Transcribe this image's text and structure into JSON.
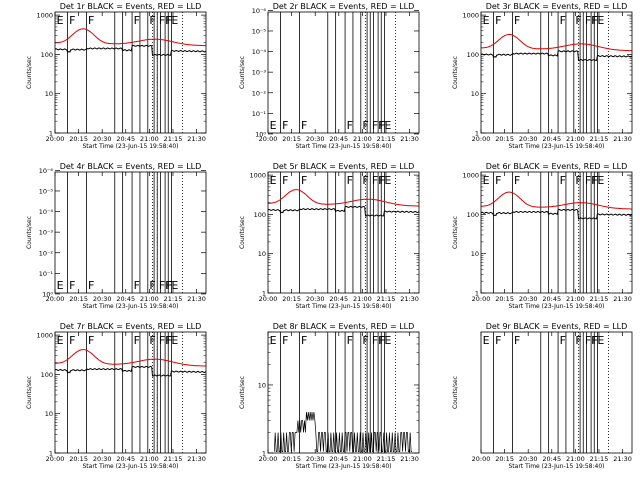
{
  "x_ticks": [
    "20:00",
    "20:15",
    "20:30",
    "20:45",
    "21:00",
    "21:15",
    "21:30"
  ],
  "x_tick_values": [
    0,
    15,
    30,
    45,
    60,
    75,
    90
  ],
  "xlim": [
    0,
    96
  ],
  "xlabel": "Start Time (23-Jun-15 19:58:40)",
  "ylabel": "Counts/sec",
  "vlines": [
    8,
    20,
    38,
    43,
    49,
    54,
    59,
    63,
    65,
    67,
    70,
    72,
    74
  ],
  "dotted_vlines": [
    62,
    81
  ],
  "flags": [
    {
      "x": 1,
      "label": "E"
    },
    {
      "x": 9,
      "label": "F"
    },
    {
      "x": 21,
      "label": "F"
    },
    {
      "x": 50,
      "label": "F"
    },
    {
      "x": 60,
      "label": "F"
    },
    {
      "x": 66,
      "label": "F"
    },
    {
      "x": 70,
      "label": "F"
    },
    {
      "x": 71,
      "label": "F"
    },
    {
      "x": 74,
      "label": "E"
    }
  ],
  "ticks_dec": [
    "1",
    "10",
    "100",
    "1000"
  ],
  "ticks_exp": [
    "10⁰",
    "10⁻¹",
    "10⁻²",
    "10⁻³",
    "10⁻⁴",
    "10⁻⁵",
    "10⁻⁶"
  ],
  "ticks_det8": [
    "1",
    "10"
  ],
  "series_colors": {
    "events": "#000000",
    "lld": "#e00000"
  },
  "chart_data": [
    {
      "type": "line",
      "title": "Det 1r BLACK = Events, RED = LLD",
      "yscale": "log",
      "ylim": [
        1,
        1200
      ],
      "yticks": "dec",
      "series": [
        {
          "name": "Events",
          "kind": "events"
        },
        {
          "name": "LLD",
          "kind": "lld"
        }
      ],
      "events_base": 135,
      "events_high": 165,
      "lld_base": 195,
      "lld_peak1": 460,
      "lld_peak2": 270
    }
  ],
  "panels": [
    {
      "title": "Det 1r BLACK = Events, RED = LLD",
      "yticks": "dec",
      "ylim": [
        1,
        1200
      ],
      "mode": "full",
      "ev_base": 135,
      "ev_high": 165,
      "lld_base": 195,
      "lld_p1": 460,
      "lld_p2": 270
    },
    {
      "title": "Det 2r BLACK = Events, RED = LLD",
      "yticks": "exp",
      "ylim": [
        0.9,
        1.2e-06
      ],
      "mode": "empty"
    },
    {
      "title": "Det 3r BLACK = Events, RED = LLD",
      "yticks": "dec",
      "ylim": [
        1,
        1200
      ],
      "mode": "full",
      "ev_base": 100,
      "ev_high": 120,
      "lld_base": 145,
      "lld_p1": 330,
      "lld_p2": 205
    },
    {
      "title": "Det 4r BLACK = Events, RED = LLD",
      "yticks": "exp",
      "ylim": [
        0.9,
        1.2e-06
      ],
      "mode": "empty"
    },
    {
      "title": "Det 5r BLACK = Events, RED = LLD",
      "yticks": "dec",
      "ylim": [
        1,
        1200
      ],
      "mode": "full",
      "ev_base": 130,
      "ev_high": 155,
      "lld_base": 190,
      "lld_p1": 440,
      "lld_p2": 270
    },
    {
      "title": "Det 6r BLACK = Events, RED = LLD",
      "yticks": "dec",
      "ylim": [
        1,
        1200
      ],
      "mode": "full",
      "ev_base": 110,
      "ev_high": 130,
      "lld_base": 160,
      "lld_p1": 380,
      "lld_p2": 220
    },
    {
      "title": "Det 7r BLACK = Events, RED = LLD",
      "yticks": "dec",
      "ylim": [
        1,
        1200
      ],
      "mode": "full",
      "ev_base": 130,
      "ev_high": 155,
      "lld_base": 190,
      "lld_p1": 440,
      "lld_p2": 270
    },
    {
      "title": "Det 8r BLACK = Events, RED = LLD",
      "yticks": "det8",
      "ylim": [
        1,
        60
      ],
      "mode": "noise"
    },
    {
      "title": "Det 9r BLACK = Events, RED = LLD",
      "yticks": "none",
      "ylim": [
        1,
        1200
      ],
      "mode": "empty"
    }
  ]
}
